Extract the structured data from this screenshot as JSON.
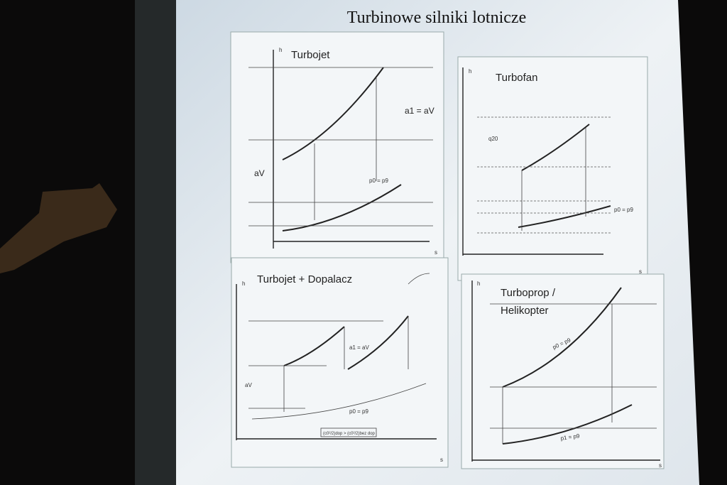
{
  "slide": {
    "title": "Turbinowe silniki lotnicze",
    "panels": [
      {
        "title": "Turbojet",
        "y_axis": "h",
        "x_axis": "s",
        "labels": [
          "a1 = aV",
          "aV",
          "p0 = p9"
        ]
      },
      {
        "title": "Turbofan",
        "y_axis": "h",
        "x_axis": "s",
        "labels": [
          "p0 = p9",
          "q20"
        ]
      },
      {
        "title": "Turbojet + Dopalacz",
        "y_axis": "h",
        "x_axis": "s",
        "labels": [
          "a1 = aV",
          "aV",
          "p0 = p9",
          "(c0²/2)dop > (c0²/2)bez dop"
        ]
      },
      {
        "title": "Turboprop / Helikopter",
        "y_axis": "h",
        "x_axis": "s",
        "labels": [
          "p0 = p9",
          "p1 = p9"
        ]
      }
    ]
  }
}
